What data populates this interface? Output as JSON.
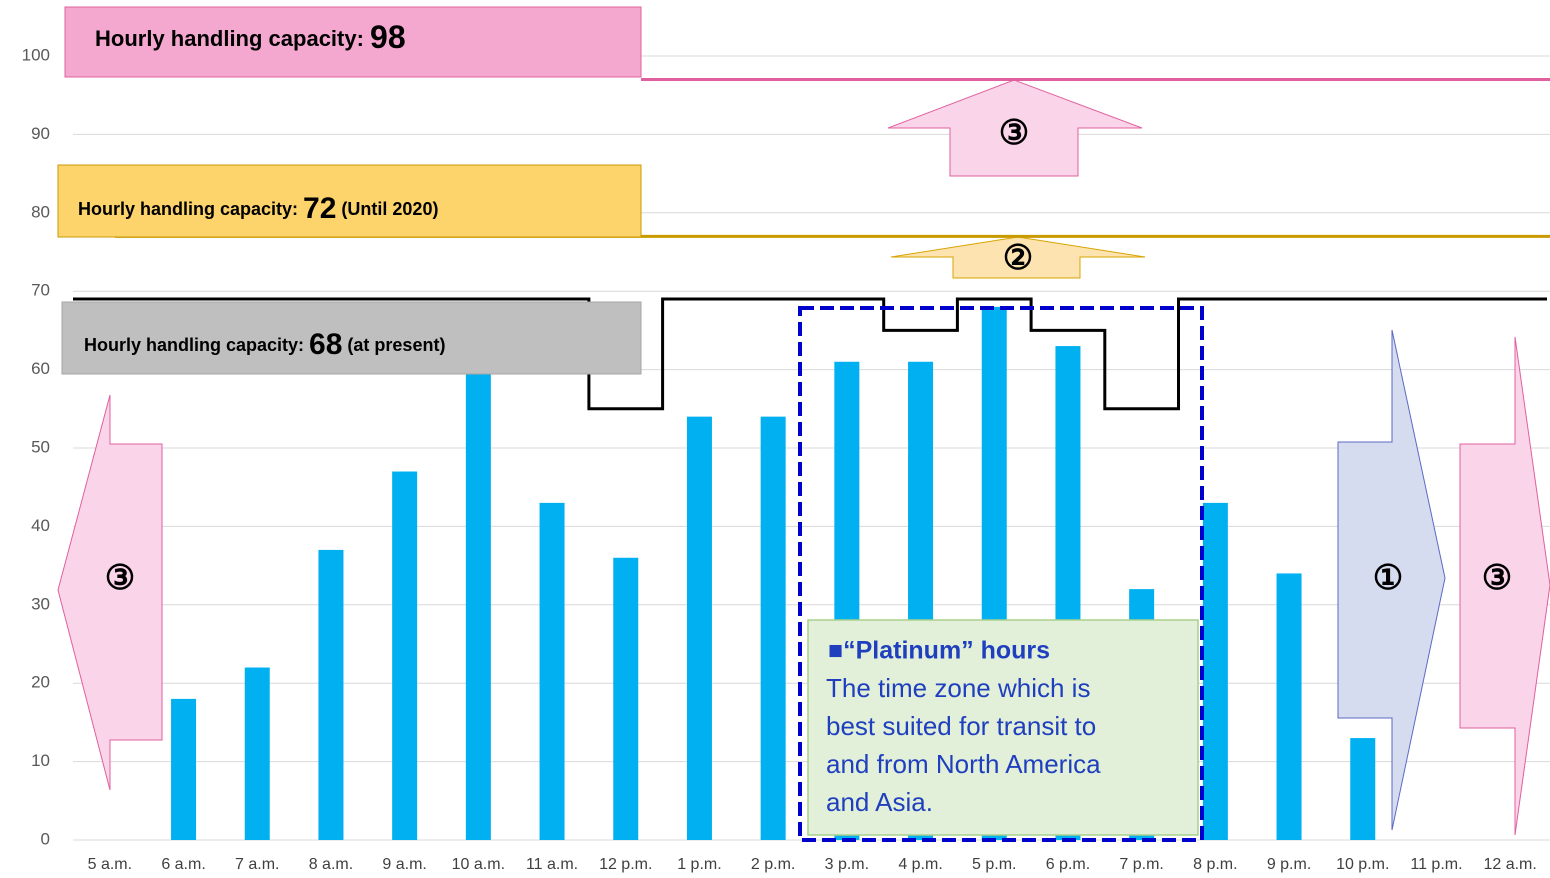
{
  "chart_data": {
    "type": "bar",
    "categories": [
      "5 a.m.",
      "6 a.m.",
      "7 a.m.",
      "8 a.m.",
      "9 a.m.",
      "10 a.m.",
      "11 a.m.",
      "12 p.m.",
      "1 p.m.",
      "2 p.m.",
      "3 p.m.",
      "4 p.m.",
      "5 p.m.",
      "6 p.m.",
      "7 p.m.",
      "8 p.m.",
      "9 p.m.",
      "10 p.m.",
      "11 p.m.",
      "12 a.m."
    ],
    "series": [
      {
        "type": "bar",
        "color": "#00b0f0",
        "values": [
          0,
          18,
          22,
          37,
          47,
          60,
          43,
          36,
          54,
          54,
          61,
          61,
          68,
          63,
          32,
          43,
          34,
          13,
          0,
          0
        ]
      },
      {
        "type": "step",
        "color": "#000000",
        "values": [
          69,
          69,
          69,
          69,
          69,
          69,
          69,
          55,
          69,
          69,
          69,
          65,
          69,
          65,
          55,
          69,
          69,
          69,
          69,
          69
        ]
      }
    ],
    "ylim": [
      0,
      100
    ],
    "yticks": [
      0,
      10,
      20,
      30,
      40,
      50,
      60,
      70,
      80,
      90,
      100
    ],
    "grid": true,
    "capacity_labels": [
      {
        "parts": [
          "Hourly handling capacity: ",
          "98"
        ],
        "line": 97,
        "color": "#e0609f",
        "fill": "#f4a7cf"
      },
      {
        "parts": [
          "Hourly handling capacity: ",
          "72",
          " (Until 2020)"
        ],
        "line": 77,
        "color": "#c89a00",
        "fill": "#fdd36b"
      },
      {
        "parts": [
          "Hourly handling capacity: ",
          "68",
          " (at present)"
        ],
        "fill": "#bfbfbf"
      }
    ],
    "callout": {
      "heading": "■“Platinum” hours",
      "lines": [
        "The time zone which is",
        "best suited for transit to",
        "and from North America",
        "and Asia."
      ]
    },
    "arrow_labels": [
      "③",
      "②",
      "③",
      "①",
      "③"
    ]
  }
}
